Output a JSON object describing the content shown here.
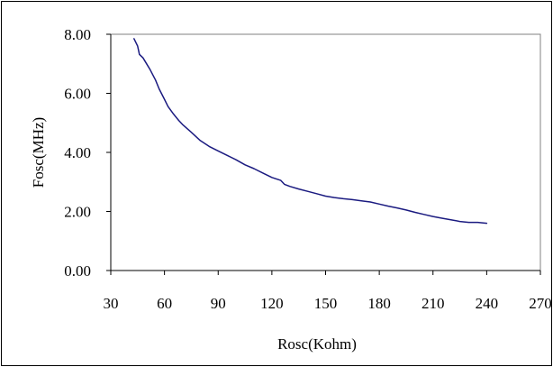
{
  "chart_data": {
    "type": "line",
    "title": "",
    "xlabel": "Rosc(Kohm)",
    "ylabel": "Fosc(MHz)",
    "xlim": [
      30,
      270
    ],
    "ylim": [
      0,
      8
    ],
    "x_ticks": [
      30,
      60,
      90,
      120,
      150,
      180,
      210,
      240,
      270
    ],
    "x_tick_labels": [
      "30",
      "60",
      "90",
      "120",
      "150",
      "180",
      "210",
      "240",
      "270"
    ],
    "y_ticks": [
      0,
      2,
      4,
      6,
      8
    ],
    "y_tick_labels": [
      "0.00",
      "2.00",
      "4.00",
      "6.00",
      "8.00"
    ],
    "grid": false,
    "legend": "none",
    "series": [
      {
        "color": "#1a1a80",
        "x": [
          43,
          45,
          46,
          48,
          50,
          52,
          55,
          57,
          60,
          62,
          65,
          68,
          70,
          75,
          80,
          85,
          90,
          95,
          100,
          105,
          110,
          115,
          120,
          125,
          127,
          130,
          135,
          140,
          145,
          150,
          155,
          160,
          165,
          170,
          175,
          180,
          185,
          190,
          195,
          200,
          205,
          210,
          215,
          220,
          225,
          230,
          235,
          240
        ],
        "y": [
          7.85,
          7.6,
          7.32,
          7.2,
          7.0,
          6.8,
          6.45,
          6.15,
          5.8,
          5.55,
          5.3,
          5.08,
          4.95,
          4.68,
          4.4,
          4.2,
          4.05,
          3.9,
          3.75,
          3.58,
          3.45,
          3.3,
          3.15,
          3.05,
          2.92,
          2.85,
          2.76,
          2.68,
          2.6,
          2.52,
          2.47,
          2.43,
          2.4,
          2.36,
          2.32,
          2.25,
          2.18,
          2.12,
          2.05,
          1.97,
          1.9,
          1.83,
          1.77,
          1.72,
          1.66,
          1.63,
          1.63,
          1.6
        ]
      }
    ]
  }
}
